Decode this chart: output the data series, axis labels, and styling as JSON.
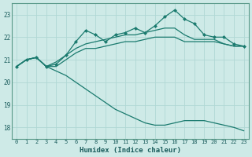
{
  "title": "",
  "xlabel": "Humidex (Indice chaleur)",
  "x": [
    0,
    1,
    2,
    3,
    4,
    5,
    6,
    7,
    8,
    9,
    10,
    11,
    12,
    13,
    14,
    15,
    16,
    17,
    18,
    19,
    20,
    21,
    22,
    23
  ],
  "line_jagged": [
    20.7,
    21.0,
    21.1,
    20.7,
    20.8,
    21.2,
    21.8,
    22.3,
    22.1,
    21.8,
    22.1,
    22.2,
    22.4,
    22.2,
    22.5,
    22.9,
    23.2,
    22.8,
    22.6,
    22.1,
    22.0,
    22.0,
    21.7,
    21.6
  ],
  "line_smooth_top": [
    20.7,
    21.0,
    21.1,
    20.7,
    20.9,
    21.2,
    21.5,
    21.7,
    21.8,
    21.9,
    22.0,
    22.1,
    22.1,
    22.2,
    22.3,
    22.4,
    22.4,
    22.1,
    21.9,
    21.9,
    21.9,
    21.7,
    21.6,
    21.6
  ],
  "line_smooth_mid": [
    20.7,
    21.0,
    21.1,
    20.7,
    20.7,
    21.0,
    21.3,
    21.5,
    21.5,
    21.6,
    21.7,
    21.8,
    21.8,
    21.9,
    22.0,
    22.0,
    22.0,
    21.8,
    21.8,
    21.8,
    21.8,
    21.7,
    21.6,
    21.6
  ],
  "line_drop": [
    20.7,
    21.0,
    21.1,
    20.7,
    20.5,
    20.3,
    20.0,
    19.7,
    19.4,
    19.1,
    18.8,
    18.6,
    18.4,
    18.2,
    18.1,
    18.1,
    18.2,
    18.3,
    18.3,
    18.3,
    18.2,
    18.1,
    18.0,
    17.85
  ],
  "line_color": "#1a7a6e",
  "bg_color": "#ceeae7",
  "grid_color": "#b0d8d4",
  "ylim": [
    17.5,
    23.5
  ],
  "xlim": [
    -0.5,
    23.5
  ],
  "yticks": [
    18,
    19,
    20,
    21,
    22,
    23
  ],
  "xticks": [
    0,
    1,
    2,
    3,
    4,
    5,
    6,
    7,
    8,
    9,
    10,
    11,
    12,
    13,
    14,
    15,
    16,
    17,
    18,
    19,
    20,
    21,
    22,
    23
  ]
}
